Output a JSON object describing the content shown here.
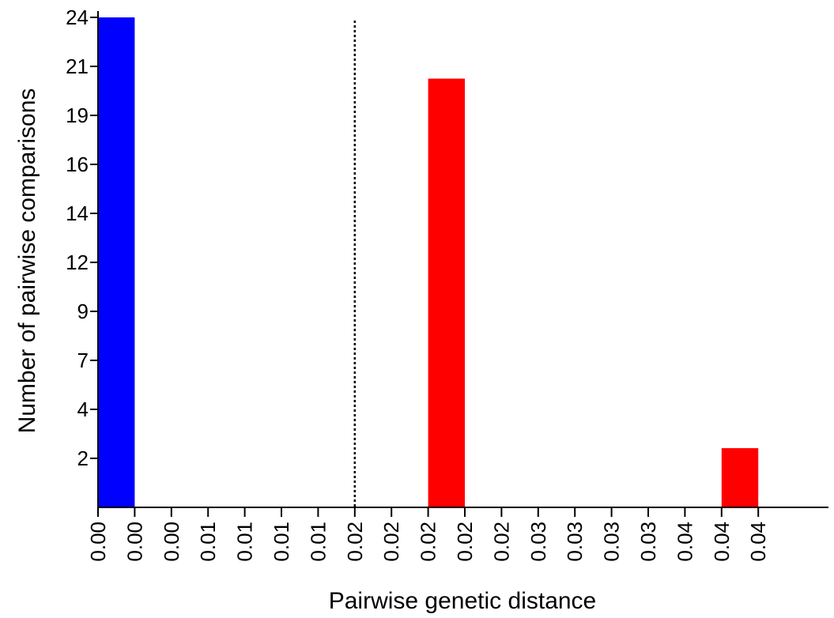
{
  "chart_data": {
    "type": "bar",
    "title": "",
    "xlabel": "Pairwise genetic distance",
    "ylabel": "Number of pairwise comparisons",
    "x_tick_labels": [
      "0.00",
      "0.00",
      "0.00",
      "0.01",
      "0.01",
      "0.01",
      "0.01",
      "0.02",
      "0.02",
      "0.02",
      "0.02",
      "0.02",
      "0.03",
      "0.03",
      "0.03",
      "0.03",
      "0.04",
      "0.04",
      "0.04"
    ],
    "y_tick_labels": [
      "2",
      "4",
      "7",
      "9",
      "12",
      "14",
      "16",
      "19",
      "21",
      "24"
    ],
    "y_tick_values": [
      2.4,
      4.8,
      7.2,
      9.6,
      12.0,
      14.4,
      16.8,
      19.2,
      21.6,
      24.0
    ],
    "ylim": [
      0,
      24.0
    ],
    "bins": 19,
    "bars": [
      {
        "bin_start": 0,
        "bin_end": 1,
        "value": 24.0,
        "color": "#0000ff"
      },
      {
        "bin_start": 9,
        "bin_end": 10,
        "value": 21.0,
        "color": "#ff0000"
      },
      {
        "bin_start": 17,
        "bin_end": 18,
        "value": 2.9,
        "color": "#ff0000"
      }
    ],
    "threshold_line": {
      "bin_position": 7,
      "style": "dotted"
    },
    "grid": false,
    "legend": "none"
  }
}
